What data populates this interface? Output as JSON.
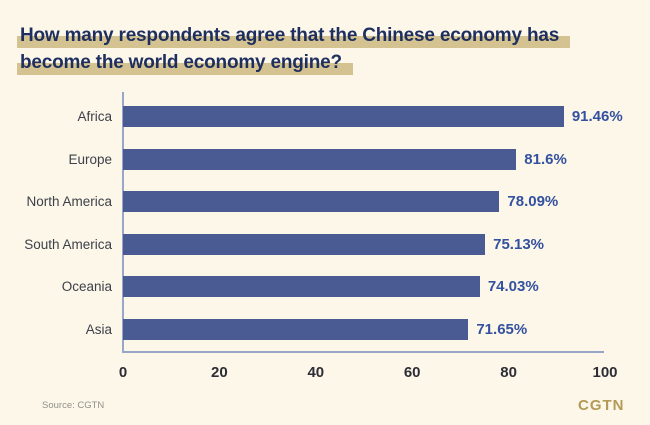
{
  "header": {
    "title_line1": "How many respondents agree that the Chinese economy has",
    "title_line2": "become the world economy engine?"
  },
  "chart_data": {
    "type": "bar",
    "orientation": "horizontal",
    "title": "How many respondents agree that the Chinese economy has become the world economy engine?",
    "categories": [
      "Africa",
      "Europe",
      "North America",
      "South America",
      "Oceania",
      "Asia"
    ],
    "values": [
      91.46,
      81.6,
      78.09,
      75.13,
      74.03,
      71.65
    ],
    "value_labels": [
      "91.46%",
      "81.6%",
      "78.09%",
      "75.13%",
      "74.03%",
      "71.65%"
    ],
    "x_ticks": [
      0,
      20,
      40,
      60,
      80,
      100
    ],
    "xlim": [
      0,
      100
    ],
    "xlabel": "",
    "ylabel": "",
    "grid": false,
    "legend": "none",
    "bar_color": "#4a5b94",
    "axis_color": "#98a6c8",
    "background_color": "#fdf7e9",
    "title_highlight_color": "#d4c390"
  },
  "footer": {
    "source": "Source: CGTN",
    "logo": "CGTN"
  }
}
